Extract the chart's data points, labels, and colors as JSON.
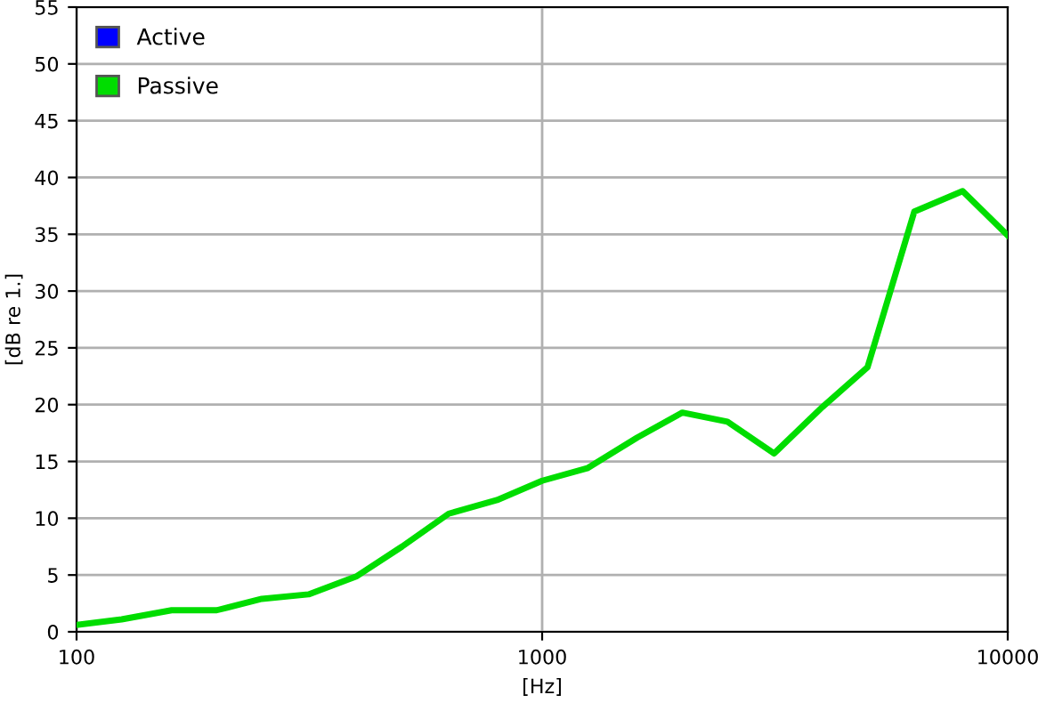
{
  "chart_data": {
    "type": "line",
    "xlabel": "[Hz]",
    "ylabel": "[dB re 1.]",
    "x": [
      100,
      125,
      160,
      200,
      250,
      315,
      400,
      500,
      630,
      800,
      1000,
      1250,
      1600,
      2000,
      2500,
      3150,
      4000,
      5000,
      6300,
      8000,
      10000
    ],
    "series": [
      {
        "name": "Active",
        "color": "#0000ff",
        "values": [
          null,
          null,
          null,
          null,
          null,
          null,
          null,
          null,
          null,
          null,
          null,
          null,
          null,
          null,
          null,
          null,
          null,
          null,
          null,
          null,
          null
        ]
      },
      {
        "name": "Passive",
        "color": "#00dd00",
        "values": [
          0.6,
          1.1,
          1.9,
          1.9,
          2.9,
          3.3,
          4.9,
          7.5,
          10.4,
          11.6,
          13.3,
          14.4,
          17.1,
          19.3,
          18.5,
          15.7,
          19.8,
          23.3,
          37,
          38.8,
          34.9
        ]
      }
    ],
    "log": "x",
    "xlim": [
      100,
      10000
    ],
    "xticks": [
      100,
      1000,
      10000
    ],
    "ylim": [
      0,
      55
    ],
    "yticks": [
      0,
      5,
      10,
      15,
      20,
      25,
      30,
      35,
      40,
      45,
      50,
      55
    ],
    "grid": true,
    "legend": "top left",
    "marker": "none",
    "line_style": "solid"
  }
}
